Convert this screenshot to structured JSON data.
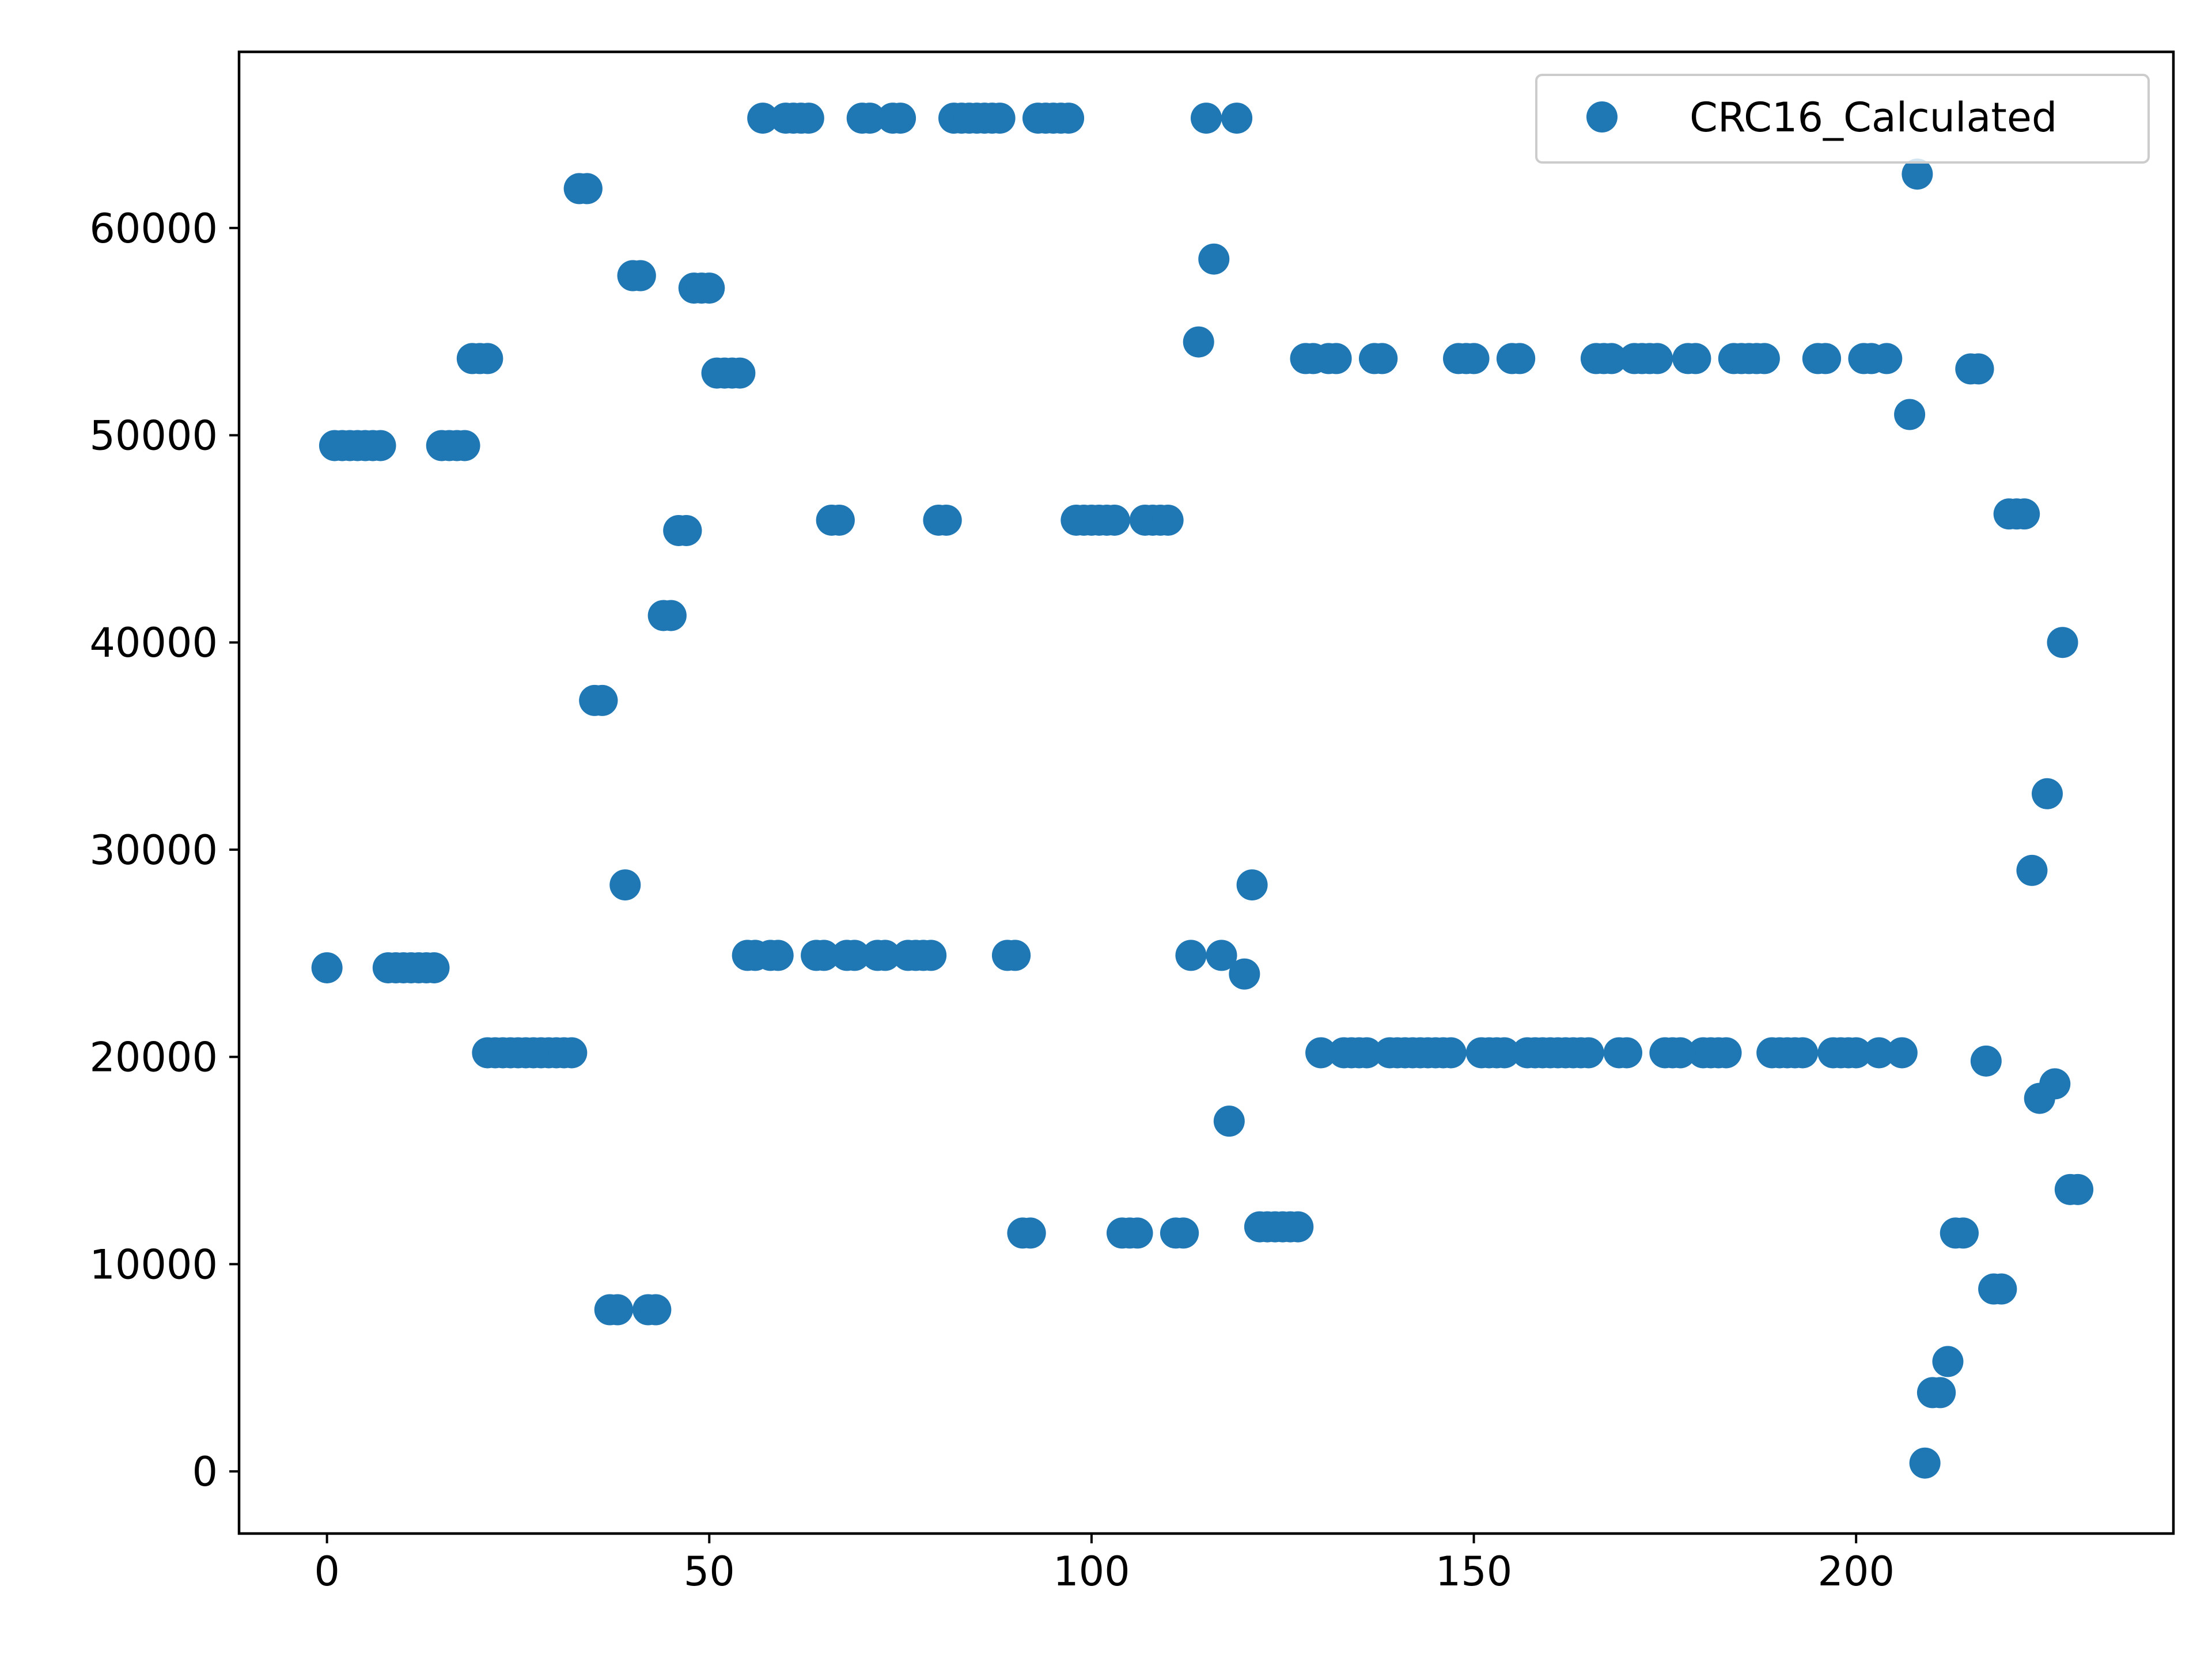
{
  "chart_data": {
    "type": "scatter",
    "xlim": [
      -11.5,
      241.5
    ],
    "ylim": [
      -3000,
      68500
    ],
    "grid": false,
    "legend_position": "top-right",
    "xticks": [
      0,
      50,
      100,
      150,
      200
    ],
    "yticks": [
      0,
      10000,
      20000,
      30000,
      40000,
      50000,
      60000
    ],
    "series": [
      {
        "name": "CRC16_Calculated",
        "color": "#1f77b4",
        "marker": "circle",
        "points": [
          [
            0,
            24300
          ],
          [
            1,
            49500
          ],
          [
            2,
            49500
          ],
          [
            3,
            49500
          ],
          [
            4,
            49500
          ],
          [
            5,
            49500
          ],
          [
            6,
            49500
          ],
          [
            7,
            49500
          ],
          [
            8,
            24300
          ],
          [
            9,
            24300
          ],
          [
            10,
            24300
          ],
          [
            11,
            24300
          ],
          [
            12,
            24300
          ],
          [
            13,
            24300
          ],
          [
            14,
            24300
          ],
          [
            15,
            49500
          ],
          [
            16,
            49500
          ],
          [
            17,
            49500
          ],
          [
            18,
            49500
          ],
          [
            19,
            53700
          ],
          [
            20,
            53700
          ],
          [
            21,
            53700
          ],
          [
            21,
            20200
          ],
          [
            22,
            20200
          ],
          [
            23,
            20200
          ],
          [
            24,
            20200
          ],
          [
            25,
            20200
          ],
          [
            26,
            20200
          ],
          [
            27,
            20200
          ],
          [
            28,
            20200
          ],
          [
            29,
            20200
          ],
          [
            30,
            20200
          ],
          [
            31,
            20200
          ],
          [
            32,
            20200
          ],
          [
            33,
            61900
          ],
          [
            34,
            61900
          ],
          [
            35,
            37200
          ],
          [
            36,
            37200
          ],
          [
            37,
            7800
          ],
          [
            38,
            7800
          ],
          [
            39,
            28300
          ],
          [
            40,
            57700
          ],
          [
            41,
            57700
          ],
          [
            42,
            7800
          ],
          [
            43,
            7800
          ],
          [
            44,
            41300
          ],
          [
            45,
            41300
          ],
          [
            46,
            45400
          ],
          [
            47,
            45400
          ],
          [
            48,
            57100
          ],
          [
            49,
            57100
          ],
          [
            50,
            57100
          ],
          [
            51,
            53000
          ],
          [
            52,
            53000
          ],
          [
            53,
            53000
          ],
          [
            54,
            53000
          ],
          [
            55,
            24900
          ],
          [
            56,
            24900
          ],
          [
            57,
            65300
          ],
          [
            58,
            24900
          ],
          [
            59,
            24900
          ],
          [
            60,
            65300
          ],
          [
            61,
            65300
          ],
          [
            62,
            65300
          ],
          [
            63,
            65300
          ],
          [
            64,
            24900
          ],
          [
            65,
            24900
          ],
          [
            66,
            45900
          ],
          [
            67,
            45900
          ],
          [
            68,
            24900
          ],
          [
            69,
            24900
          ],
          [
            70,
            65300
          ],
          [
            71,
            65300
          ],
          [
            72,
            24900
          ],
          [
            73,
            24900
          ],
          [
            74,
            65300
          ],
          [
            75,
            65300
          ],
          [
            76,
            24900
          ],
          [
            77,
            24900
          ],
          [
            78,
            24900
          ],
          [
            79,
            24900
          ],
          [
            80,
            45900
          ],
          [
            81,
            45900
          ],
          [
            82,
            65300
          ],
          [
            83,
            65300
          ],
          [
            84,
            65300
          ],
          [
            85,
            65300
          ],
          [
            86,
            65300
          ],
          [
            87,
            65300
          ],
          [
            88,
            65300
          ],
          [
            89,
            24900
          ],
          [
            90,
            24900
          ],
          [
            91,
            11500
          ],
          [
            92,
            11500
          ],
          [
            93,
            65300
          ],
          [
            94,
            65300
          ],
          [
            95,
            65300
          ],
          [
            96,
            65300
          ],
          [
            97,
            65300
          ],
          [
            98,
            45900
          ],
          [
            99,
            45900
          ],
          [
            100,
            45900
          ],
          [
            101,
            45900
          ],
          [
            102,
            45900
          ],
          [
            103,
            45900
          ],
          [
            104,
            11500
          ],
          [
            105,
            11500
          ],
          [
            106,
            11500
          ],
          [
            107,
            45900
          ],
          [
            108,
            45900
          ],
          [
            109,
            45900
          ],
          [
            110,
            45900
          ],
          [
            111,
            11500
          ],
          [
            112,
            11500
          ],
          [
            113,
            24900
          ],
          [
            114,
            54500
          ],
          [
            115,
            65300
          ],
          [
            116,
            58500
          ],
          [
            117,
            24900
          ],
          [
            118,
            16900
          ],
          [
            119,
            65300
          ],
          [
            120,
            24000
          ],
          [
            121,
            28300
          ],
          [
            122,
            11800
          ],
          [
            123,
            11800
          ],
          [
            124,
            11800
          ],
          [
            125,
            11800
          ],
          [
            126,
            11800
          ],
          [
            127,
            11800
          ],
          [
            128,
            53700
          ],
          [
            129,
            53700
          ],
          [
            130,
            20200
          ],
          [
            131,
            53700
          ],
          [
            132,
            53700
          ],
          [
            133,
            20200
          ],
          [
            134,
            20200
          ],
          [
            135,
            20200
          ],
          [
            136,
            20200
          ],
          [
            137,
            53700
          ],
          [
            138,
            53700
          ],
          [
            139,
            20200
          ],
          [
            140,
            20200
          ],
          [
            141,
            20200
          ],
          [
            142,
            20200
          ],
          [
            143,
            20200
          ],
          [
            144,
            20200
          ],
          [
            145,
            20200
          ],
          [
            146,
            20200
          ],
          [
            147,
            20200
          ],
          [
            148,
            53700
          ],
          [
            149,
            53700
          ],
          [
            150,
            53700
          ],
          [
            151,
            20200
          ],
          [
            152,
            20200
          ],
          [
            153,
            20200
          ],
          [
            154,
            20200
          ],
          [
            155,
            53700
          ],
          [
            156,
            53700
          ],
          [
            157,
            20200
          ],
          [
            158,
            20200
          ],
          [
            159,
            20200
          ],
          [
            160,
            20200
          ],
          [
            161,
            20200
          ],
          [
            162,
            20200
          ],
          [
            163,
            20200
          ],
          [
            164,
            20200
          ],
          [
            165,
            20200
          ],
          [
            166,
            53700
          ],
          [
            167,
            53700
          ],
          [
            168,
            53700
          ],
          [
            169,
            20200
          ],
          [
            170,
            20200
          ],
          [
            171,
            53700
          ],
          [
            172,
            53700
          ],
          [
            173,
            53700
          ],
          [
            174,
            53700
          ],
          [
            175,
            20200
          ],
          [
            176,
            20200
          ],
          [
            177,
            20200
          ],
          [
            178,
            53700
          ],
          [
            179,
            53700
          ],
          [
            180,
            20200
          ],
          [
            181,
            20200
          ],
          [
            182,
            20200
          ],
          [
            183,
            20200
          ],
          [
            184,
            53700
          ],
          [
            185,
            53700
          ],
          [
            186,
            53700
          ],
          [
            187,
            53700
          ],
          [
            188,
            53700
          ],
          [
            189,
            20200
          ],
          [
            190,
            20200
          ],
          [
            191,
            20200
          ],
          [
            192,
            20200
          ],
          [
            193,
            20200
          ],
          [
            195,
            53700
          ],
          [
            196,
            53700
          ],
          [
            197,
            20200
          ],
          [
            198,
            20200
          ],
          [
            199,
            20200
          ],
          [
            200,
            20200
          ],
          [
            201,
            53700
          ],
          [
            202,
            53700
          ],
          [
            203,
            20200
          ],
          [
            204,
            53700
          ],
          [
            206,
            20200
          ],
          [
            207,
            51000
          ],
          [
            208,
            62600
          ],
          [
            209,
            400
          ],
          [
            210,
            3800
          ],
          [
            211,
            3800
          ],
          [
            212,
            5300
          ],
          [
            213,
            11500
          ],
          [
            214,
            11500
          ],
          [
            215,
            53200
          ],
          [
            216,
            53200
          ],
          [
            217,
            19800
          ],
          [
            218,
            8800
          ],
          [
            219,
            8800
          ],
          [
            220,
            46200
          ],
          [
            221,
            46200
          ],
          [
            222,
            46200
          ],
          [
            223,
            29000
          ],
          [
            224,
            18000
          ],
          [
            225,
            32700
          ],
          [
            226,
            18700
          ],
          [
            227,
            40000
          ],
          [
            228,
            13600
          ],
          [
            229,
            13600
          ]
        ]
      }
    ]
  }
}
